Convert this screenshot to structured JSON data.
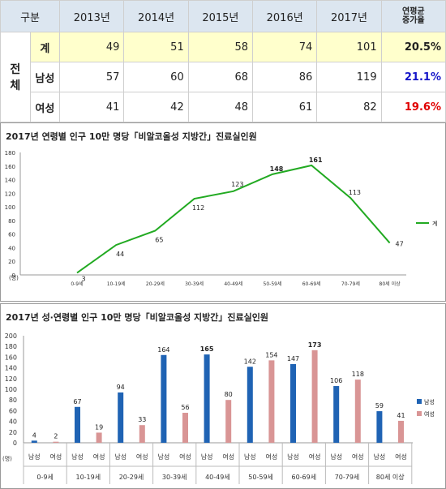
{
  "table": {
    "headers": [
      "구분",
      "2013년",
      "2014년",
      "2015년",
      "2016년",
      "2017년"
    ],
    "growth_header_line1": "연평균",
    "growth_header_line2": "증가율",
    "group_label": "전체",
    "rows": [
      {
        "label": "계",
        "values": [
          "49",
          "51",
          "58",
          "74",
          "101"
        ],
        "growth": "20.5%"
      },
      {
        "label": "남성",
        "values": [
          "57",
          "60",
          "68",
          "86",
          "119"
        ],
        "growth": "21.1%"
      },
      {
        "label": "여성",
        "values": [
          "41",
          "42",
          "48",
          "61",
          "82"
        ],
        "growth": "19.6%"
      }
    ],
    "colors": {
      "header_bg": "#dce6f0",
      "highlight_bg": "#ffffcc",
      "male_growth": "#1515c8",
      "female_growth": "#e00000"
    }
  },
  "chart_data": [
    {
      "type": "line",
      "title": "2017년 연령별 인구 10만 명당「비알코올성 지방간」진료실인원",
      "categories": [
        "0-9세",
        "10-19세",
        "20-29세",
        "30-39세",
        "40-49세",
        "50-59세",
        "60-69세",
        "70-79세",
        "80세 이상"
      ],
      "series": [
        {
          "name": "계",
          "values": [
            3,
            44,
            65,
            112,
            123,
            148,
            161,
            113,
            47
          ],
          "color": "#22aa22"
        }
      ],
      "yticks": [
        0,
        20,
        40,
        60,
        80,
        100,
        120,
        140,
        160,
        180
      ],
      "ylim": [
        0,
        180
      ],
      "unit_label": "(명)",
      "legend": "right",
      "emphasized": [
        148,
        161
      ]
    },
    {
      "type": "bar",
      "title": "2017년 성·연령별 인구 10만 명당「비알코올성 지방간」진료실인원",
      "categories": [
        "0-9세",
        "10-19세",
        "20-29세",
        "30-39세",
        "40-49세",
        "50-59세",
        "60-69세",
        "70-79세",
        "80세 이상"
      ],
      "sublabels": [
        "남성",
        "여성"
      ],
      "series": [
        {
          "name": "남성",
          "values": [
            4,
            67,
            94,
            164,
            165,
            142,
            147,
            106,
            59
          ],
          "color": "#1f63b4"
        },
        {
          "name": "여성",
          "values": [
            2,
            19,
            33,
            56,
            80,
            154,
            173,
            118,
            41
          ],
          "color": "#d99595"
        }
      ],
      "yticks": [
        0,
        20,
        40,
        60,
        80,
        100,
        120,
        140,
        160,
        180,
        200
      ],
      "ylim": [
        0,
        200
      ],
      "unit_label": "(명)",
      "legend": "right",
      "emphasized": [
        165,
        173
      ]
    }
  ]
}
